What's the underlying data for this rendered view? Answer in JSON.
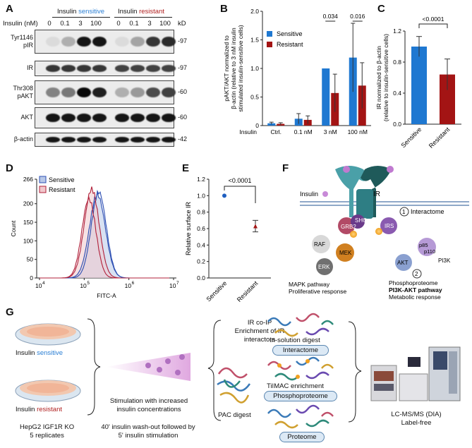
{
  "panels": {
    "A": "A",
    "B": "B",
    "C": "C",
    "D": "D",
    "E": "E",
    "F": "F",
    "G": "G"
  },
  "panel_a": {
    "insulin_label": "Insulin",
    "sensitive": "sensitive",
    "resistant": "resistant",
    "conc_label": "Insulin (nM)",
    "kd": "kD",
    "concentrations": [
      "0",
      "0.1",
      "3",
      "100",
      "0",
      "0.1",
      "3",
      "100"
    ],
    "rows": [
      {
        "label": "Tyr1146\npIR",
        "kd": "97",
        "intensities": [
          0.05,
          0.25,
          0.95,
          0.95,
          0.05,
          0.3,
          0.8,
          0.85
        ]
      },
      {
        "label": "IR",
        "kd": "97",
        "intensities": [
          0.8,
          0.8,
          0.8,
          0.8,
          0.75,
          0.75,
          0.75,
          0.75
        ]
      },
      {
        "label": "Thr308\npAKT",
        "kd": "60",
        "intensities": [
          0.45,
          0.5,
          1.0,
          0.9,
          0.25,
          0.35,
          0.7,
          0.75
        ]
      },
      {
        "label": "AKT",
        "kd": "60",
        "intensities": [
          0.95,
          0.95,
          0.95,
          0.95,
          0.95,
          0.95,
          0.95,
          0.95
        ]
      },
      {
        "label": "β-actin",
        "kd": "42",
        "intensities": [
          0.95,
          0.95,
          0.95,
          0.95,
          0.95,
          0.95,
          0.95,
          0.95
        ]
      }
    ],
    "colors": {
      "sensitive": "#2b7fd4",
      "resistant": "#b02020"
    }
  },
  "chart_data": [
    {
      "panel": "B",
      "type": "bar",
      "categories": [
        "Ctrl.",
        "0.1 nM",
        "3 nM",
        "100 nM"
      ],
      "category_prefix": "Insulin",
      "ylabel": "pAKT/AKT normalized to\nβ-actin (relative to 3 nM insulin\nstimulated insulin-sensitive cells)",
      "ylim": [
        0,
        2.0
      ],
      "yticks": [
        0,
        0.5,
        1.0,
        1.5,
        2.0
      ],
      "series": [
        {
          "name": "Sensitive",
          "color": "#1f78d1",
          "values": [
            0.04,
            0.12,
            1.0,
            1.19
          ],
          "err": [
            0.02,
            0.09,
            0.0,
            0.6
          ]
        },
        {
          "name": "Resistant",
          "color": "#a31414",
          "values": [
            0.03,
            0.1,
            0.57,
            0.7
          ],
          "err": [
            0.02,
            0.07,
            0.33,
            0.4
          ]
        }
      ],
      "annotations": [
        {
          "category": "3 nM",
          "text": "0.034"
        },
        {
          "category": "100 nM",
          "text": "0.016"
        }
      ],
      "legend": "top-left"
    },
    {
      "panel": "C",
      "type": "bar",
      "categories": [
        "Sensitive",
        "Resistant"
      ],
      "ylabel": "IR normalized to β-actin\n(relative to insulin-sensitive cells)",
      "ylim": [
        0,
        1.2
      ],
      "yticks": [
        0.0,
        0.4,
        0.8,
        1.2
      ],
      "values": [
        1.0,
        0.64
      ],
      "err": [
        0.13,
        0.2
      ],
      "colors": [
        "#1f78d1",
        "#a31414"
      ],
      "annotation": "<0.0001"
    },
    {
      "panel": "D",
      "type": "area",
      "xlabel": "FITC-A",
      "ylabel": "Count",
      "ylim": [
        0,
        266
      ],
      "yticks": [
        "0",
        "50",
        "100",
        "150",
        "200",
        "266"
      ],
      "xticks": [
        "10",
        "10",
        "10",
        "10"
      ],
      "xtick_exps": [
        "4",
        "5",
        "6",
        "7"
      ],
      "series": [
        {
          "name": "Sensitive",
          "color": "#2d4fb3",
          "fill": "#b8c8e8"
        },
        {
          "name": "Resistant",
          "color": "#b0203a",
          "fill": "#f0c8cc"
        }
      ],
      "legend": "top-left"
    },
    {
      "panel": "E",
      "type": "scatter",
      "categories": [
        "Sensitive",
        "Resistant"
      ],
      "ylabel": "Relative surface IR",
      "ylim": [
        0,
        1.2
      ],
      "yticks": [
        "0.0",
        "0.2",
        "0.4",
        "0.6",
        "0.8",
        "1.0",
        "1.2"
      ],
      "values": [
        1.0,
        0.63
      ],
      "err": [
        0.0,
        0.07
      ],
      "colors": [
        "#1f5fc0",
        "#a31414"
      ],
      "annotation": "<0.0001"
    }
  ],
  "panel_f": {
    "insulin": "Insulin",
    "ir": "IR",
    "interactome": "Interactome",
    "num1": "1",
    "num2": "2",
    "grb2": "GRB2",
    "shc": "SHC",
    "irs": "IRS",
    "raf": "RAF",
    "mek": "MEK",
    "erk": "ERK",
    "p85": "p85",
    "p110": "p110",
    "pi3k": "PI3K",
    "akt": "AKT",
    "phospho": "Phosphoproteome",
    "pi3k_pathway": "PI3K-AKT pathway",
    "metabolic": "Metabolic response",
    "mapk": "MAPK pathway",
    "prolif": "Proliferative response"
  },
  "panel_g": {
    "insulin_s_prefix": "Insulin ",
    "insulin_s": "sensitive",
    "insulin_r_prefix": "Insulin ",
    "insulin_r": "resistant",
    "hepg2": "HepG2 IGF1R KO\n5 replicates",
    "stim": "Stimulation with increased\ninsulin concentrations",
    "washout": "40' insulin wash-out followed by\n5' insulin stimulation",
    "coip": "IR co-IP\nEnrichment of IR\ninteractors",
    "insol": "In-solution digest",
    "interactome": "Interactome",
    "tiimac": "TiIMAC enrichment",
    "phospho": "Phosphoproteome",
    "pac": "PAC digest",
    "proteome": "Proteome",
    "lcms": "LC-MS/MS (DIA)\nLabel-free"
  }
}
